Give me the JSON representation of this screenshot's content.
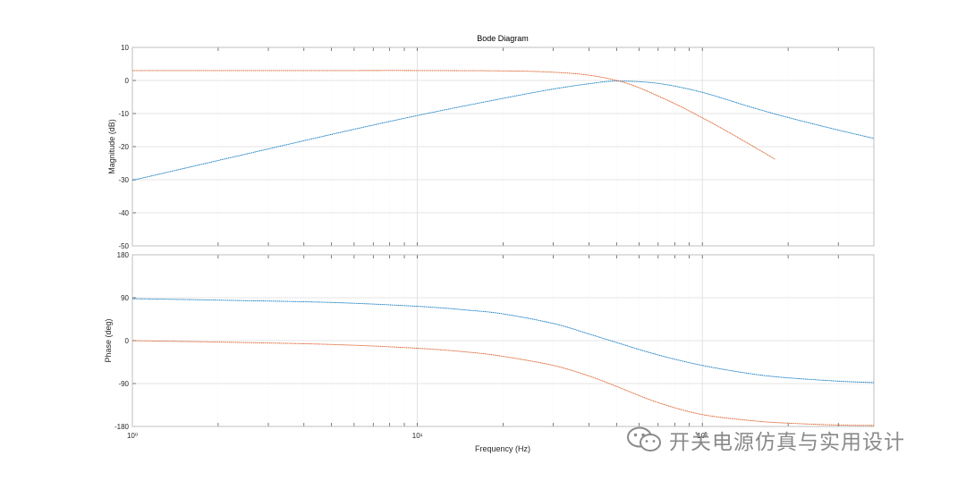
{
  "chart_data": {
    "type": "line",
    "title": "Bode Diagram",
    "xlabel": "Frequency  (Hz)",
    "x_scale": "log",
    "xlim": [
      1,
      400
    ],
    "x_tick_labels": [
      "10⁰",
      "10¹",
      "10²"
    ],
    "x_tick_values": [
      1,
      10,
      100
    ],
    "grid": true,
    "subplots": [
      {
        "name": "magnitude",
        "ylabel": "Magnitude (dB)",
        "ylim": [
          -50,
          10
        ],
        "yticks": [
          -50,
          -40,
          -30,
          -20,
          -10,
          0,
          10
        ],
        "ytick_labels": [
          "-50",
          "-40",
          "-30",
          "-20",
          "-10",
          "0",
          "10"
        ],
        "series": [
          {
            "color": "#0072BD",
            "x": [
              1,
              2,
              5,
              10,
              20,
              30,
              40,
              50,
              70,
              100,
              150,
              200,
              300,
              400
            ],
            "y": [
              -30.2,
              -24.2,
              -16.3,
              -10.6,
              -5.4,
              -2.6,
              -1.0,
              -0.2,
              -0.9,
              -3.6,
              -8.2,
              -11.2,
              -15.0,
              -17.5
            ]
          },
          {
            "color": "#D95319",
            "x": [
              1,
              5,
              10,
              20,
              30,
              40,
              50,
              60,
              80,
              100,
              120,
              150,
              180
            ],
            "y": [
              3.0,
              3.0,
              3.0,
              2.9,
              2.5,
              1.6,
              0.0,
              -2.2,
              -7.0,
              -11.3,
              -15.0,
              -19.8,
              -23.8
            ]
          }
        ]
      },
      {
        "name": "phase",
        "ylabel": "Phase (deg)",
        "ylim": [
          -180,
          180
        ],
        "yticks": [
          -180,
          -90,
          0,
          90,
          180
        ],
        "ytick_labels": [
          "-180",
          "-90",
          "0",
          "90",
          "180"
        ],
        "series": [
          {
            "color": "#0072BD",
            "x": [
              1,
              2,
              5,
              10,
              15,
              20,
              30,
              40,
              50,
              70,
              100,
              150,
              200,
              300,
              400
            ],
            "y": [
              88,
              85,
              80,
              72,
              64,
              56,
              36,
              14,
              -4,
              -30,
              -52,
              -70,
              -78,
              -85,
              -88
            ]
          },
          {
            "color": "#D95319",
            "x": [
              1,
              2,
              5,
              10,
              15,
              20,
              30,
              40,
              50,
              70,
              100,
              150,
              200,
              300,
              400
            ],
            "y": [
              0,
              -3,
              -8,
              -16,
              -24,
              -33,
              -52,
              -74,
              -96,
              -130,
              -155,
              -168,
              -173,
              -177,
              -178
            ]
          }
        ]
      }
    ]
  },
  "watermark": {
    "text": "开关电源仿真与实用设计",
    "icon": "wechat-icon"
  }
}
